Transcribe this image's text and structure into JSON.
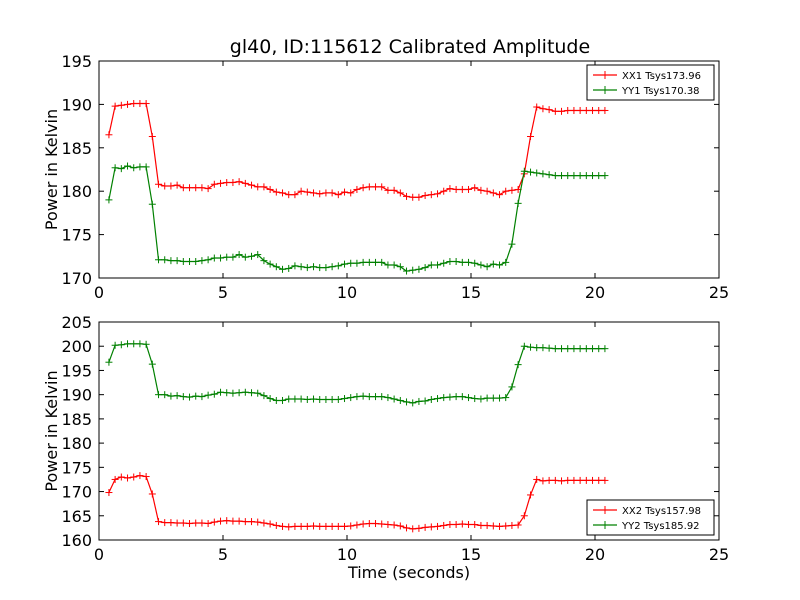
{
  "title": "gl40, ID:115612 Calibrated Amplitude",
  "chart_data": [
    {
      "type": "line",
      "ylabel": "Power in Kelvin",
      "xlabel": "",
      "xlim": [
        0,
        25
      ],
      "ylim": [
        170,
        195
      ],
      "xticks": [
        0,
        5,
        10,
        15,
        20,
        25
      ],
      "yticks": [
        170,
        175,
        180,
        185,
        190,
        195
      ],
      "legend_position": "top-right",
      "marker": "+",
      "x": [
        0.4,
        0.65,
        0.9,
        1.15,
        1.4,
        1.65,
        1.9,
        2.15,
        2.4,
        2.65,
        2.9,
        3.15,
        3.4,
        3.65,
        3.9,
        4.15,
        4.4,
        4.65,
        4.9,
        5.15,
        5.4,
        5.65,
        5.9,
        6.15,
        6.4,
        6.65,
        6.9,
        7.15,
        7.4,
        7.65,
        7.9,
        8.15,
        8.4,
        8.65,
        8.9,
        9.15,
        9.4,
        9.65,
        9.9,
        10.15,
        10.4,
        10.65,
        10.9,
        11.15,
        11.4,
        11.65,
        11.9,
        12.15,
        12.4,
        12.65,
        12.9,
        13.15,
        13.4,
        13.65,
        13.9,
        14.15,
        14.4,
        14.65,
        14.9,
        15.15,
        15.4,
        15.65,
        15.9,
        16.15,
        16.4,
        16.65,
        16.9,
        17.15,
        17.4,
        17.65,
        17.9,
        18.15,
        18.4,
        18.65,
        18.9,
        19.15,
        19.4,
        19.65,
        19.9,
        20.15,
        20.4
      ],
      "series": [
        {
          "name": "XX1 Tsys173.96",
          "color": "#ff0000",
          "values": [
            186.5,
            189.8,
            189.9,
            190.0,
            190.1,
            190.1,
            190.1,
            186.3,
            180.8,
            180.6,
            180.6,
            180.7,
            180.4,
            180.4,
            180.4,
            180.4,
            180.3,
            180.8,
            180.9,
            181.0,
            181.0,
            181.1,
            180.9,
            180.7,
            180.5,
            180.5,
            180.2,
            179.9,
            179.8,
            179.6,
            179.6,
            180.0,
            179.9,
            179.8,
            179.7,
            179.8,
            179.8,
            179.6,
            179.9,
            179.8,
            180.2,
            180.4,
            180.5,
            180.5,
            180.5,
            180.1,
            180.1,
            179.8,
            179.4,
            179.3,
            179.3,
            179.5,
            179.6,
            179.7,
            180.0,
            180.3,
            180.2,
            180.2,
            180.2,
            180.4,
            180.1,
            180.0,
            179.8,
            179.6,
            180.0,
            180.1,
            180.2,
            182.0,
            186.3,
            189.7,
            189.5,
            189.4,
            189.2,
            189.2,
            189.3,
            189.3,
            189.3,
            189.3,
            189.3,
            189.3,
            189.3
          ]
        },
        {
          "name": "YY1 Tsys170.38",
          "color": "#008000",
          "values": [
            179.0,
            182.7,
            182.6,
            182.9,
            182.7,
            182.8,
            182.8,
            178.5,
            172.1,
            172.1,
            172.0,
            172.0,
            171.9,
            171.9,
            171.9,
            172.0,
            172.1,
            172.3,
            172.3,
            172.4,
            172.4,
            172.7,
            172.4,
            172.5,
            172.7,
            172.0,
            171.6,
            171.3,
            171.0,
            171.1,
            171.4,
            171.3,
            171.2,
            171.3,
            171.2,
            171.2,
            171.3,
            171.4,
            171.6,
            171.7,
            171.7,
            171.8,
            171.8,
            171.8,
            171.8,
            171.5,
            171.5,
            171.3,
            170.8,
            170.9,
            171.0,
            171.2,
            171.5,
            171.5,
            171.7,
            171.9,
            171.9,
            171.8,
            171.8,
            171.7,
            171.5,
            171.3,
            171.6,
            171.5,
            171.8,
            173.9,
            178.6,
            182.3,
            182.2,
            182.1,
            182.0,
            181.9,
            181.8,
            181.8,
            181.8,
            181.8,
            181.8,
            181.8,
            181.8,
            181.8,
            181.8
          ]
        }
      ]
    },
    {
      "type": "line",
      "ylabel": "Power in Kelvin",
      "xlabel": "Time (seconds)",
      "xlim": [
        0,
        25
      ],
      "ylim": [
        160,
        205
      ],
      "xticks": [
        0,
        5,
        10,
        15,
        20,
        25
      ],
      "yticks": [
        160,
        165,
        170,
        175,
        180,
        185,
        190,
        195,
        200,
        205
      ],
      "legend_position": "bottom-right",
      "marker": "+",
      "x": [
        0.4,
        0.65,
        0.9,
        1.15,
        1.4,
        1.65,
        1.9,
        2.15,
        2.4,
        2.65,
        2.9,
        3.15,
        3.4,
        3.65,
        3.9,
        4.15,
        4.4,
        4.65,
        4.9,
        5.15,
        5.4,
        5.65,
        5.9,
        6.15,
        6.4,
        6.65,
        6.9,
        7.15,
        7.4,
        7.65,
        7.9,
        8.15,
        8.4,
        8.65,
        8.9,
        9.15,
        9.4,
        9.65,
        9.9,
        10.15,
        10.4,
        10.65,
        10.9,
        11.15,
        11.4,
        11.65,
        11.9,
        12.15,
        12.4,
        12.65,
        12.9,
        13.15,
        13.4,
        13.65,
        13.9,
        14.15,
        14.4,
        14.65,
        14.9,
        15.15,
        15.4,
        15.65,
        15.9,
        16.15,
        16.4,
        16.65,
        16.9,
        17.15,
        17.4,
        17.65,
        17.9,
        18.15,
        18.4,
        18.65,
        18.9,
        19.15,
        19.4,
        19.65,
        19.9,
        20.15,
        20.4
      ],
      "series": [
        {
          "name": "XX2 Tsys157.98",
          "color": "#ff0000",
          "values": [
            169.8,
            172.5,
            173.0,
            172.8,
            173.0,
            173.3,
            173.1,
            169.5,
            163.8,
            163.6,
            163.6,
            163.5,
            163.5,
            163.4,
            163.5,
            163.5,
            163.4,
            163.7,
            163.9,
            164.0,
            163.9,
            163.9,
            163.8,
            163.8,
            163.7,
            163.5,
            163.3,
            163.0,
            162.8,
            162.7,
            162.8,
            162.8,
            162.8,
            162.9,
            162.8,
            162.8,
            162.8,
            162.8,
            162.8,
            162.9,
            163.1,
            163.3,
            163.4,
            163.4,
            163.3,
            163.2,
            163.1,
            162.9,
            162.5,
            162.3,
            162.4,
            162.6,
            162.7,
            162.8,
            163.0,
            163.2,
            163.2,
            163.3,
            163.2,
            163.2,
            163.0,
            163.0,
            162.9,
            162.8,
            162.9,
            163.0,
            163.1,
            165.0,
            169.3,
            172.5,
            172.2,
            172.3,
            172.3,
            172.2,
            172.3,
            172.3,
            172.3,
            172.3,
            172.3,
            172.3,
            172.3
          ]
        },
        {
          "name": "YY2 Tsys185.92",
          "color": "#008000",
          "values": [
            196.7,
            200.2,
            200.3,
            200.5,
            200.5,
            200.5,
            200.4,
            196.3,
            190.0,
            190.0,
            189.7,
            189.8,
            189.6,
            189.5,
            189.7,
            189.6,
            189.9,
            190.1,
            190.5,
            190.4,
            190.3,
            190.4,
            190.5,
            190.4,
            190.3,
            189.8,
            189.2,
            188.8,
            188.8,
            189.1,
            189.1,
            189.1,
            189.0,
            189.1,
            189.0,
            189.0,
            189.0,
            189.0,
            189.2,
            189.4,
            189.6,
            189.7,
            189.6,
            189.6,
            189.6,
            189.4,
            189.1,
            188.8,
            188.5,
            188.3,
            188.6,
            188.7,
            189.0,
            189.2,
            189.4,
            189.5,
            189.6,
            189.6,
            189.4,
            189.2,
            189.1,
            189.3,
            189.3,
            189.3,
            189.4,
            191.6,
            196.2,
            200.0,
            199.8,
            199.7,
            199.7,
            199.6,
            199.5,
            199.5,
            199.5,
            199.5,
            199.5,
            199.5,
            199.5,
            199.5,
            199.5
          ]
        }
      ]
    }
  ]
}
